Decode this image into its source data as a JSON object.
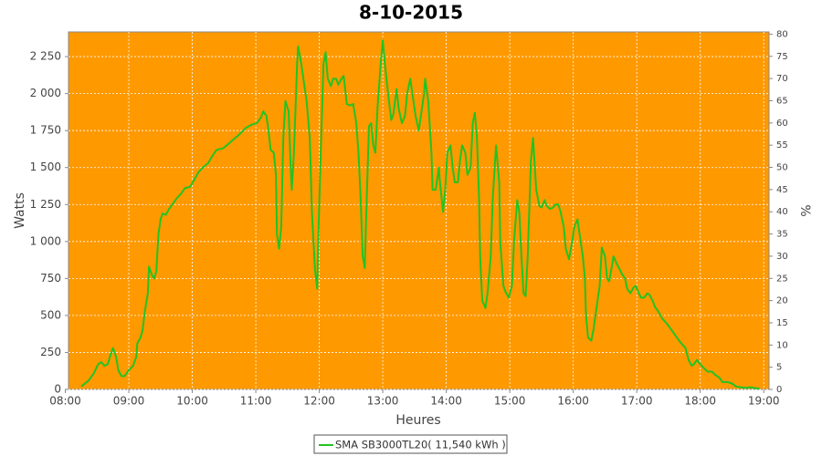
{
  "chart_data": {
    "type": "line",
    "title": "8-10-2015",
    "x_label": "Heures",
    "y_label": "Watts",
    "y2_label": "%",
    "x": [
      "08:15",
      "08:22",
      "08:27",
      "08:31",
      "08:34",
      "08:37",
      "08:40",
      "08:43",
      "08:45",
      "08:48",
      "08:50",
      "08:53",
      "08:56",
      "09:00",
      "09:04",
      "09:07",
      "09:08",
      "09:11",
      "09:13",
      "09:15",
      "09:18",
      "09:19",
      "09:22",
      "09:24",
      "09:26",
      "09:28",
      "09:30",
      "09:32",
      "09:35",
      "09:38",
      "09:41",
      "09:45",
      "09:49",
      "09:53",
      "09:58",
      "10:02",
      "10:06",
      "10:10",
      "10:15",
      "10:19",
      "10:23",
      "10:29",
      "10:34",
      "10:39",
      "10:44",
      "10:48",
      "10:51",
      "10:56",
      "11:01",
      "11:05",
      "11:07",
      "11:10",
      "11:12",
      "11:14",
      "11:17",
      "11:19",
      "11:20",
      "11:22",
      "11:24",
      "11:26",
      "11:28",
      "11:31",
      "11:33",
      "11:34",
      "11:36",
      "11:39",
      "11:40",
      "11:43",
      "11:45",
      "11:48",
      "11:51",
      "11:53",
      "11:56",
      "11:58",
      "11:59",
      "12:01",
      "12:04",
      "12:06",
      "12:08",
      "12:11",
      "12:13",
      "12:16",
      "12:18",
      "12:21",
      "12:23",
      "12:24",
      "12:26",
      "12:29",
      "12:32",
      "12:35",
      "12:37",
      "12:39",
      "12:41",
      "12:43",
      "12:44",
      "12:47",
      "12:49",
      "12:51",
      "12:53",
      "12:55",
      "12:58",
      "13:00",
      "13:02",
      "13:05",
      "13:08",
      "13:10",
      "13:13",
      "13:15",
      "13:18",
      "13:21",
      "13:23",
      "13:26",
      "13:28",
      "13:31",
      "13:34",
      "13:36",
      "13:39",
      "13:40",
      "13:43",
      "13:46",
      "13:47",
      "13:50",
      "13:53",
      "13:54",
      "13:57",
      "13:59",
      "14:01",
      "14:04",
      "14:06",
      "14:08",
      "14:11",
      "14:13",
      "14:15",
      "14:18",
      "14:20",
      "14:23",
      "14:25",
      "14:27",
      "14:29",
      "14:31",
      "14:32",
      "14:34",
      "14:37",
      "14:39",
      "14:42",
      "14:44",
      "14:47",
      "14:50",
      "14:51",
      "14:54",
      "14:56",
      "14:59",
      "15:02",
      "15:04",
      "15:07",
      "15:09",
      "15:11",
      "15:13",
      "15:15",
      "15:17",
      "15:20",
      "15:22",
      "15:25",
      "15:28",
      "15:30",
      "15:33",
      "15:35",
      "15:38",
      "15:41",
      "15:43",
      "15:46",
      "15:48",
      "15:51",
      "15:53",
      "15:56",
      "15:59",
      "16:01",
      "16:04",
      "16:06",
      "16:09",
      "16:11",
      "16:12",
      "16:14",
      "16:17",
      "16:19",
      "16:22",
      "16:25",
      "16:27",
      "16:30",
      "16:32",
      "16:34",
      "16:37",
      "16:38",
      "16:41",
      "16:44",
      "16:46",
      "16:49",
      "16:51",
      "16:54",
      "16:57",
      "16:59",
      "17:02",
      "17:04",
      "17:07",
      "17:10",
      "17:12",
      "17:15",
      "17:17",
      "17:21",
      "17:24",
      "17:29",
      "17:33",
      "17:37",
      "17:41",
      "17:46",
      "17:49",
      "17:52",
      "17:54",
      "17:57",
      "18:00",
      "18:04",
      "18:07",
      "18:11",
      "18:14",
      "18:18",
      "18:21",
      "18:26",
      "18:30",
      "18:34",
      "18:38",
      "18:43",
      "18:47",
      "18:51",
      "18:56"
    ],
    "series": [
      {
        "name": "SMA SB3000TL20( 11,540 kWh )",
        "color": "#22c322",
        "values": [
          20,
          60,
          110,
          170,
          185,
          160,
          170,
          240,
          280,
          220,
          130,
          90,
          90,
          130,
          160,
          220,
          310,
          350,
          400,
          520,
          650,
          830,
          770,
          750,
          800,
          1050,
          1150,
          1190,
          1180,
          1220,
          1250,
          1290,
          1320,
          1360,
          1370,
          1420,
          1470,
          1500,
          1530,
          1580,
          1620,
          1630,
          1660,
          1690,
          1720,
          1750,
          1770,
          1790,
          1800,
          1840,
          1880,
          1850,
          1750,
          1620,
          1600,
          1450,
          1050,
          950,
          1100,
          1700,
          1950,
          1880,
          1500,
          1350,
          1600,
          2200,
          2320,
          2200,
          2100,
          1950,
          1700,
          1200,
          800,
          680,
          1000,
          1500,
          2200,
          2280,
          2100,
          2050,
          2100,
          2100,
          2060,
          2100,
          2120,
          2060,
          1930,
          1920,
          1930,
          1800,
          1600,
          1300,
          900,
          820,
          1100,
          1780,
          1800,
          1650,
          1600,
          1900,
          2200,
          2360,
          2200,
          2000,
          1820,
          1860,
          2030,
          1900,
          1800,
          1850,
          2000,
          2100,
          2000,
          1850,
          1750,
          1850,
          2000,
          2100,
          1950,
          1600,
          1350,
          1350,
          1500,
          1400,
          1200,
          1350,
          1600,
          1650,
          1500,
          1400,
          1400,
          1550,
          1650,
          1600,
          1450,
          1500,
          1800,
          1870,
          1700,
          1300,
          900,
          600,
          550,
          650,
          900,
          1300,
          1650,
          1400,
          1000,
          700,
          660,
          620,
          700,
          1000,
          1280,
          1200,
          900,
          650,
          630,
          900,
          1550,
          1700,
          1350,
          1240,
          1230,
          1280,
          1240,
          1220,
          1230,
          1250,
          1250,
          1200,
          1100,
          950,
          880,
          1000,
          1100,
          1150,
          1050,
          900,
          750,
          500,
          350,
          330,
          400,
          550,
          700,
          960,
          900,
          750,
          730,
          850,
          900,
          850,
          810,
          780,
          750,
          680,
          650,
          690,
          700,
          650,
          620,
          620,
          650,
          640,
          600,
          560,
          520,
          480,
          440,
          400,
          360,
          320,
          280,
          200,
          160,
          170,
          200,
          170,
          140,
          120,
          120,
          100,
          80,
          50,
          50,
          40,
          20,
          15,
          10,
          15,
          10,
          5
        ]
      }
    ],
    "xlim": [
      "08:03",
      "19:05"
    ],
    "xticks": [
      "08:00",
      "09:00",
      "10:00",
      "11:00",
      "12:00",
      "13:00",
      "14:00",
      "15:00",
      "16:00",
      "17:00",
      "18:00",
      "19:00"
    ],
    "ylim": [
      0,
      2417
    ],
    "yticks": [
      0,
      250,
      500,
      750,
      {
        "value": 1000,
        "label": "1 000"
      },
      {
        "value": 1250,
        "label": "1 250"
      },
      {
        "value": 1500,
        "label": "1 500"
      },
      {
        "value": 1750,
        "label": "1 750"
      },
      {
        "value": 2000,
        "label": "2 000"
      },
      {
        "value": 2250,
        "label": "2 250"
      }
    ],
    "y2lim": [
      0,
      80.5
    ],
    "y2ticks": [
      0,
      5,
      10,
      15,
      20,
      25,
      30,
      35,
      40,
      45,
      50,
      55,
      60,
      65,
      70,
      75,
      80
    ],
    "grid": true,
    "background": "#ff9900"
  }
}
